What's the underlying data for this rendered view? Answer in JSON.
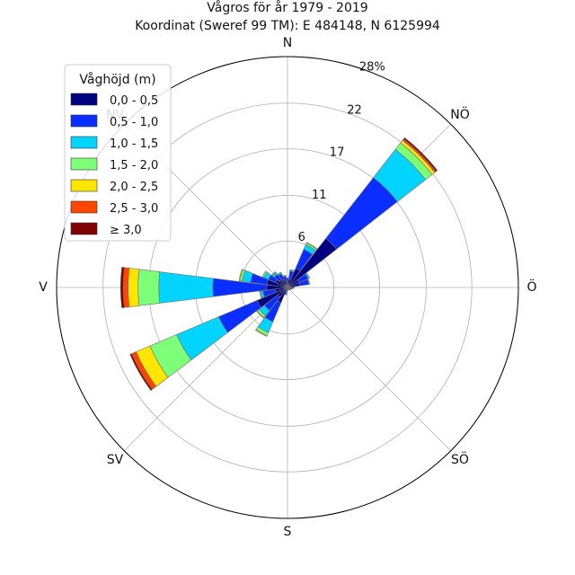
{
  "chart_data": {
    "type": "windrose",
    "title": "Vågros för år 1979 - 2019",
    "subtitle": "Koordinat (Sweref 99 TM): E 484148, N 6125994",
    "directions": [
      "N",
      "NÖ",
      "Ö",
      "SÖ",
      "S",
      "SV",
      "V",
      "NV"
    ],
    "radial_ticks": [
      "6",
      "11",
      "17",
      "22",
      "28%"
    ],
    "radial_tick_values": [
      5.6,
      11.1,
      16.7,
      22.2,
      27.8
    ],
    "rmax": 27.8,
    "legend_title": "Våghöjd (m)",
    "bins": [
      {
        "label": "0,0 - 0,5",
        "color": "#000080"
      },
      {
        "label": "0,5 - 1,0",
        "color": "#0a2eff"
      },
      {
        "label": "1,0 - 1,5",
        "color": "#00d4ff"
      },
      {
        "label": "1,5 - 2,0",
        "color": "#7dff7a"
      },
      {
        "label": "2,0 - 2,5",
        "color": "#ffe600"
      },
      {
        "label": "2,5 - 3,0",
        "color": "#ff4500"
      },
      {
        "label": "≥ 3,0",
        "color": "#800000"
      }
    ],
    "sectors": [
      {
        "angle": 0,
        "values": [
          0.5,
          0.6,
          0.1,
          0.0,
          0.0,
          0.0,
          0.0
        ]
      },
      {
        "angle": 15,
        "values": [
          1.0,
          1.0,
          0.2,
          0.0,
          0.0,
          0.0,
          0.0
        ]
      },
      {
        "angle": 30,
        "values": [
          2.5,
          2.5,
          0.6,
          0.2,
          0.1,
          0.0,
          0.0
        ]
      },
      {
        "angle": 45,
        "values": [
          7.5,
          9.3,
          4.3,
          1.0,
          0.4,
          0.2,
          0.2
        ]
      },
      {
        "angle": 60,
        "values": [
          1.5,
          1.2,
          0.2,
          0.0,
          0.0,
          0.0,
          0.0
        ]
      },
      {
        "angle": 75,
        "values": [
          1.5,
          1.1,
          0.1,
          0.0,
          0.0,
          0.0,
          0.0
        ]
      },
      {
        "angle": 90,
        "values": [
          0.5,
          0.3,
          0.0,
          0.0,
          0.0,
          0.0,
          0.0
        ]
      },
      {
        "angle": 105,
        "values": [
          0.4,
          0.2,
          0.0,
          0.0,
          0.0,
          0.0,
          0.0
        ]
      },
      {
        "angle": 120,
        "values": [
          0.3,
          0.1,
          0.0,
          0.0,
          0.0,
          0.0,
          0.0
        ]
      },
      {
        "angle": 135,
        "values": [
          0.3,
          0.1,
          0.0,
          0.0,
          0.0,
          0.0,
          0.0
        ]
      },
      {
        "angle": 150,
        "values": [
          0.2,
          0.1,
          0.0,
          0.0,
          0.0,
          0.0,
          0.0
        ]
      },
      {
        "angle": 165,
        "values": [
          0.2,
          0.1,
          0.0,
          0.0,
          0.0,
          0.0,
          0.0
        ]
      },
      {
        "angle": 180,
        "values": [
          0.3,
          0.1,
          0.0,
          0.0,
          0.0,
          0.0,
          0.0
        ]
      },
      {
        "angle": 195,
        "values": [
          0.5,
          0.3,
          0.1,
          0.0,
          0.0,
          0.0,
          0.0
        ]
      },
      {
        "angle": 210,
        "values": [
          2.0,
          2.5,
          1.4,
          0.4,
          0.1,
          0.0,
          0.0
        ]
      },
      {
        "angle": 225,
        "values": [
          1.5,
          2.0,
          0.8,
          0.3,
          0.1,
          0.0,
          0.0
        ]
      },
      {
        "angle": 240,
        "values": [
          4.0,
          5.0,
          5.5,
          3.5,
          1.8,
          0.6,
          0.2
        ]
      },
      {
        "angle": 255,
        "values": [
          1.5,
          1.5,
          0.3,
          0.1,
          0.0,
          0.0,
          0.0
        ]
      },
      {
        "angle": 270,
        "values": [
          2.5,
          6.5,
          6.5,
          2.5,
          1.2,
          0.6,
          0.3
        ]
      },
      {
        "angle": 285,
        "values": [
          2.5,
          2.0,
          1.0,
          0.3,
          0.1,
          0.0,
          0.0
        ]
      },
      {
        "angle": 300,
        "values": [
          1.5,
          1.0,
          0.6,
          0.2,
          0.0,
          0.0,
          0.0
        ]
      },
      {
        "angle": 315,
        "values": [
          1.2,
          0.8,
          0.3,
          0.1,
          0.0,
          0.0,
          0.0
        ]
      },
      {
        "angle": 330,
        "values": [
          1.0,
          0.8,
          0.2,
          0.0,
          0.0,
          0.0,
          0.0
        ]
      },
      {
        "angle": 345,
        "values": [
          0.8,
          0.6,
          0.1,
          0.0,
          0.0,
          0.0,
          0.0
        ]
      }
    ],
    "sector_width_deg": 14,
    "grid": true,
    "legend_position": "top-left"
  }
}
